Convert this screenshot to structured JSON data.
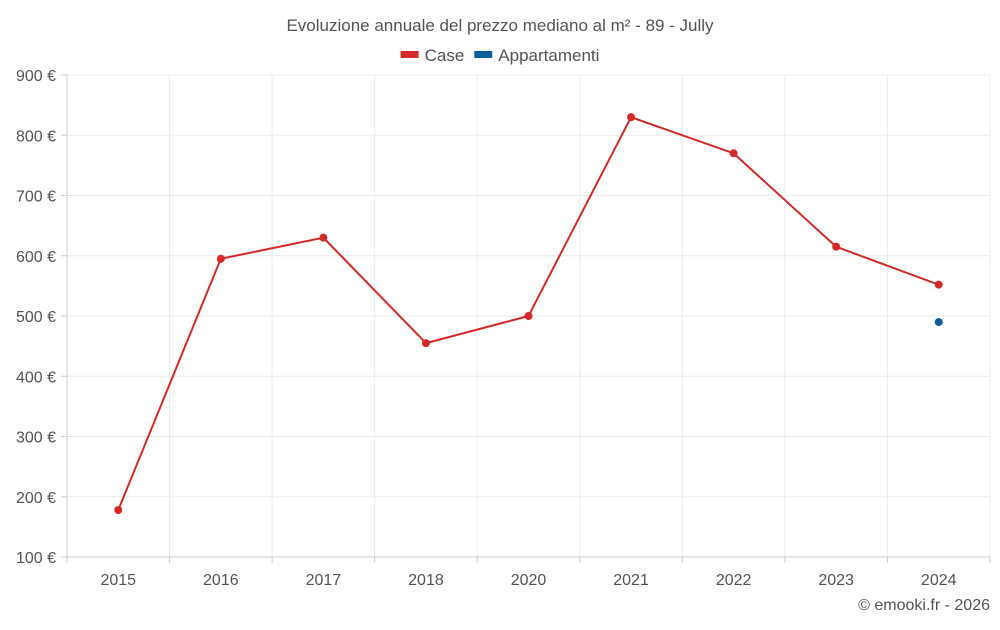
{
  "chart_data": {
    "type": "line",
    "title": "Evoluzione annuale del prezzo mediano al m² - 89 - Jully",
    "categories": [
      "2015",
      "2016",
      "2017",
      "2018",
      "2020",
      "2021",
      "2022",
      "2023",
      "2024"
    ],
    "series": [
      {
        "name": "Case",
        "color": "#d42a2a",
        "values": [
          178,
          595,
          630,
          455,
          500,
          830,
          770,
          615,
          552
        ]
      },
      {
        "name": "Appartamenti",
        "color": "#0b5e96",
        "values": [
          null,
          null,
          null,
          null,
          null,
          null,
          null,
          null,
          490
        ]
      }
    ],
    "ylim": [
      100,
      900
    ],
    "yticks": [
      100,
      200,
      300,
      400,
      500,
      600,
      700,
      800,
      900
    ],
    "y_tick_suffix": " €",
    "xlabel": "",
    "ylabel": "",
    "grid": true,
    "legend_position": "top-center"
  },
  "credit": "© emooki.fr - 2026"
}
